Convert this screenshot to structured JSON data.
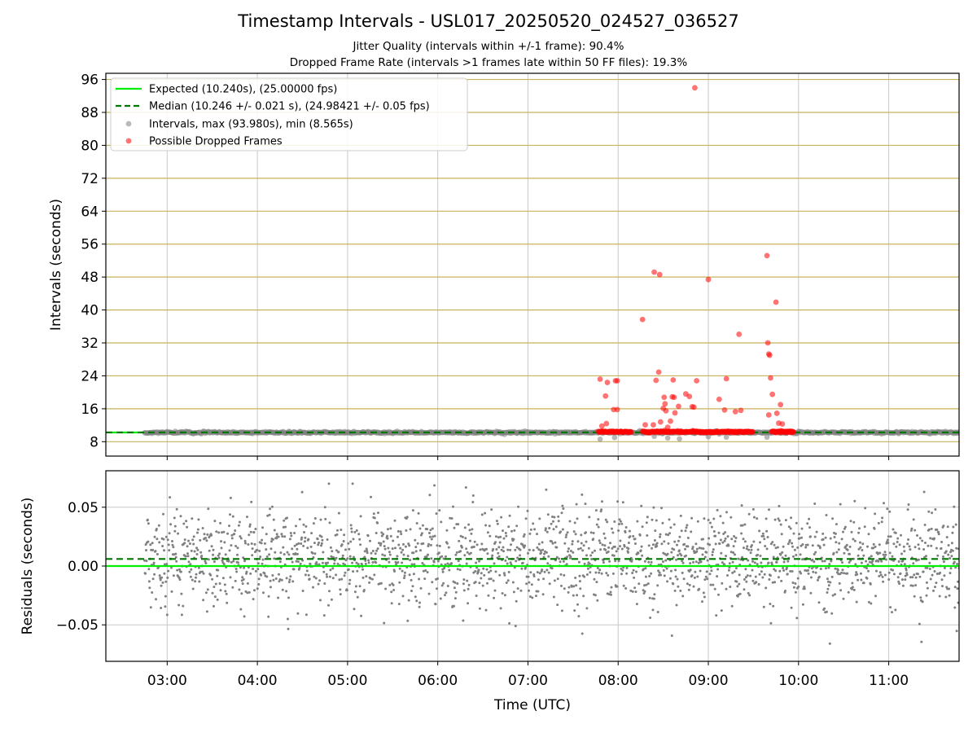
{
  "title": "Timestamp Intervals - USL017_20250520_024527_036527",
  "subtitle_1": "Jitter Quality (intervals within +/-1 frame): 90.4%",
  "subtitle_2": "Dropped Frame Rate (intervals >1 frames late within 50 FF files): 19.3%",
  "colors": {
    "expected": "#00ee00",
    "median": "#007700",
    "intervals": "#808080",
    "dropped": "#ff0000",
    "hgrid_top": "#c8b25a",
    "grid": "#c8c8c8"
  },
  "chart_data": [
    {
      "type": "scatter",
      "xlabel": "",
      "ylabel": "Intervals (seconds)",
      "x_unit": "hours UTC",
      "xlim": [
        2.32,
        11.78
      ],
      "ylim": [
        4.5,
        97.5
      ],
      "yticks": [
        8,
        16,
        24,
        32,
        40,
        48,
        56,
        64,
        72,
        80,
        88,
        96
      ],
      "grid": true,
      "legend_position": "top-left",
      "legend": [
        "Expected (10.240s), (25.00000 fps)",
        "Median (10.246 +/- 0.021 s), (24.98421 +/- 0.05 fps)",
        "Intervals, max (93.980s), min (8.565s)",
        "Possible Dropped Frames"
      ],
      "expected_interval": 10.24,
      "median_interval": 10.246,
      "intervals_baseline": {
        "x_start": 2.75,
        "x_end": 11.78,
        "y": 10.24
      },
      "dropped_band": {
        "x_start": 7.78,
        "x_end": 9.95,
        "y": 10.4
      },
      "dropped_frames": [
        {
          "x": 7.8,
          "y": 23.2
        },
        {
          "x": 7.82,
          "y": 11.8
        },
        {
          "x": 7.86,
          "y": 19.1
        },
        {
          "x": 7.88,
          "y": 22.4
        },
        {
          "x": 7.87,
          "y": 12.4
        },
        {
          "x": 7.95,
          "y": 15.8
        },
        {
          "x": 7.97,
          "y": 22.8
        },
        {
          "x": 7.99,
          "y": 22.8
        },
        {
          "x": 7.99,
          "y": 15.8
        },
        {
          "x": 8.27,
          "y": 37.7
        },
        {
          "x": 8.3,
          "y": 12.1
        },
        {
          "x": 8.39,
          "y": 12.1
        },
        {
          "x": 8.4,
          "y": 49.2
        },
        {
          "x": 8.42,
          "y": 22.9
        },
        {
          "x": 8.46,
          "y": 48.6
        },
        {
          "x": 8.45,
          "y": 24.9
        },
        {
          "x": 8.47,
          "y": 12.8
        },
        {
          "x": 8.5,
          "y": 16.1
        },
        {
          "x": 8.52,
          "y": 17.2
        },
        {
          "x": 8.51,
          "y": 18.8
        },
        {
          "x": 8.53,
          "y": 15.5
        },
        {
          "x": 8.55,
          "y": 11.5
        },
        {
          "x": 8.58,
          "y": 13.0
        },
        {
          "x": 8.6,
          "y": 18.9
        },
        {
          "x": 8.61,
          "y": 23.0
        },
        {
          "x": 8.62,
          "y": 18.8
        },
        {
          "x": 8.63,
          "y": 15.0
        },
        {
          "x": 8.67,
          "y": 16.6
        },
        {
          "x": 8.75,
          "y": 19.6
        },
        {
          "x": 8.79,
          "y": 19.0
        },
        {
          "x": 8.82,
          "y": 16.5
        },
        {
          "x": 8.84,
          "y": 16.4
        },
        {
          "x": 8.85,
          "y": 93.98
        },
        {
          "x": 8.87,
          "y": 22.8
        },
        {
          "x": 9.0,
          "y": 47.4
        },
        {
          "x": 9.12,
          "y": 18.3
        },
        {
          "x": 9.18,
          "y": 15.7
        },
        {
          "x": 9.2,
          "y": 23.3
        },
        {
          "x": 9.3,
          "y": 15.3
        },
        {
          "x": 9.34,
          "y": 34.1
        },
        {
          "x": 9.36,
          "y": 15.6
        },
        {
          "x": 9.65,
          "y": 53.2
        },
        {
          "x": 9.66,
          "y": 32.0
        },
        {
          "x": 9.67,
          "y": 29.3
        },
        {
          "x": 9.68,
          "y": 29.0
        },
        {
          "x": 9.67,
          "y": 14.5
        },
        {
          "x": 9.69,
          "y": 23.5
        },
        {
          "x": 9.71,
          "y": 19.5
        },
        {
          "x": 9.75,
          "y": 41.9
        },
        {
          "x": 9.76,
          "y": 14.9
        },
        {
          "x": 9.78,
          "y": 12.5
        },
        {
          "x": 9.8,
          "y": 17.0
        },
        {
          "x": 9.82,
          "y": 12.3
        }
      ],
      "low_intervals": [
        {
          "x": 7.8,
          "y": 8.6
        },
        {
          "x": 7.96,
          "y": 9.0
        },
        {
          "x": 8.4,
          "y": 9.3
        },
        {
          "x": 8.55,
          "y": 8.9
        },
        {
          "x": 8.68,
          "y": 8.7
        },
        {
          "x": 9.0,
          "y": 9.2
        },
        {
          "x": 9.2,
          "y": 9.1
        },
        {
          "x": 9.65,
          "y": 9.1
        }
      ]
    },
    {
      "type": "scatter",
      "xlabel": "Time (UTC)",
      "ylabel": "Residuals (seconds)",
      "x_unit": "hours UTC",
      "xlim": [
        2.32,
        11.78
      ],
      "ylim": [
        -0.081,
        0.081
      ],
      "yticks": [
        -0.05,
        0.0,
        0.05
      ],
      "ytick_labels": [
        "−0.05",
        "0.00",
        "0.05"
      ],
      "xticks": [
        3,
        4,
        5,
        6,
        7,
        8,
        9,
        10,
        11
      ],
      "xtick_labels": [
        "03:00",
        "04:00",
        "05:00",
        "06:00",
        "07:00",
        "08:00",
        "09:00",
        "10:00",
        "11:00"
      ],
      "grid": true,
      "expected_line": 0.0,
      "median_line": 0.006,
      "residuals": {
        "x_start": 2.75,
        "x_end": 11.78,
        "count": 2100,
        "center": 0.007,
        "spread": 0.021,
        "min": -0.066,
        "max": 0.07
      }
    }
  ]
}
